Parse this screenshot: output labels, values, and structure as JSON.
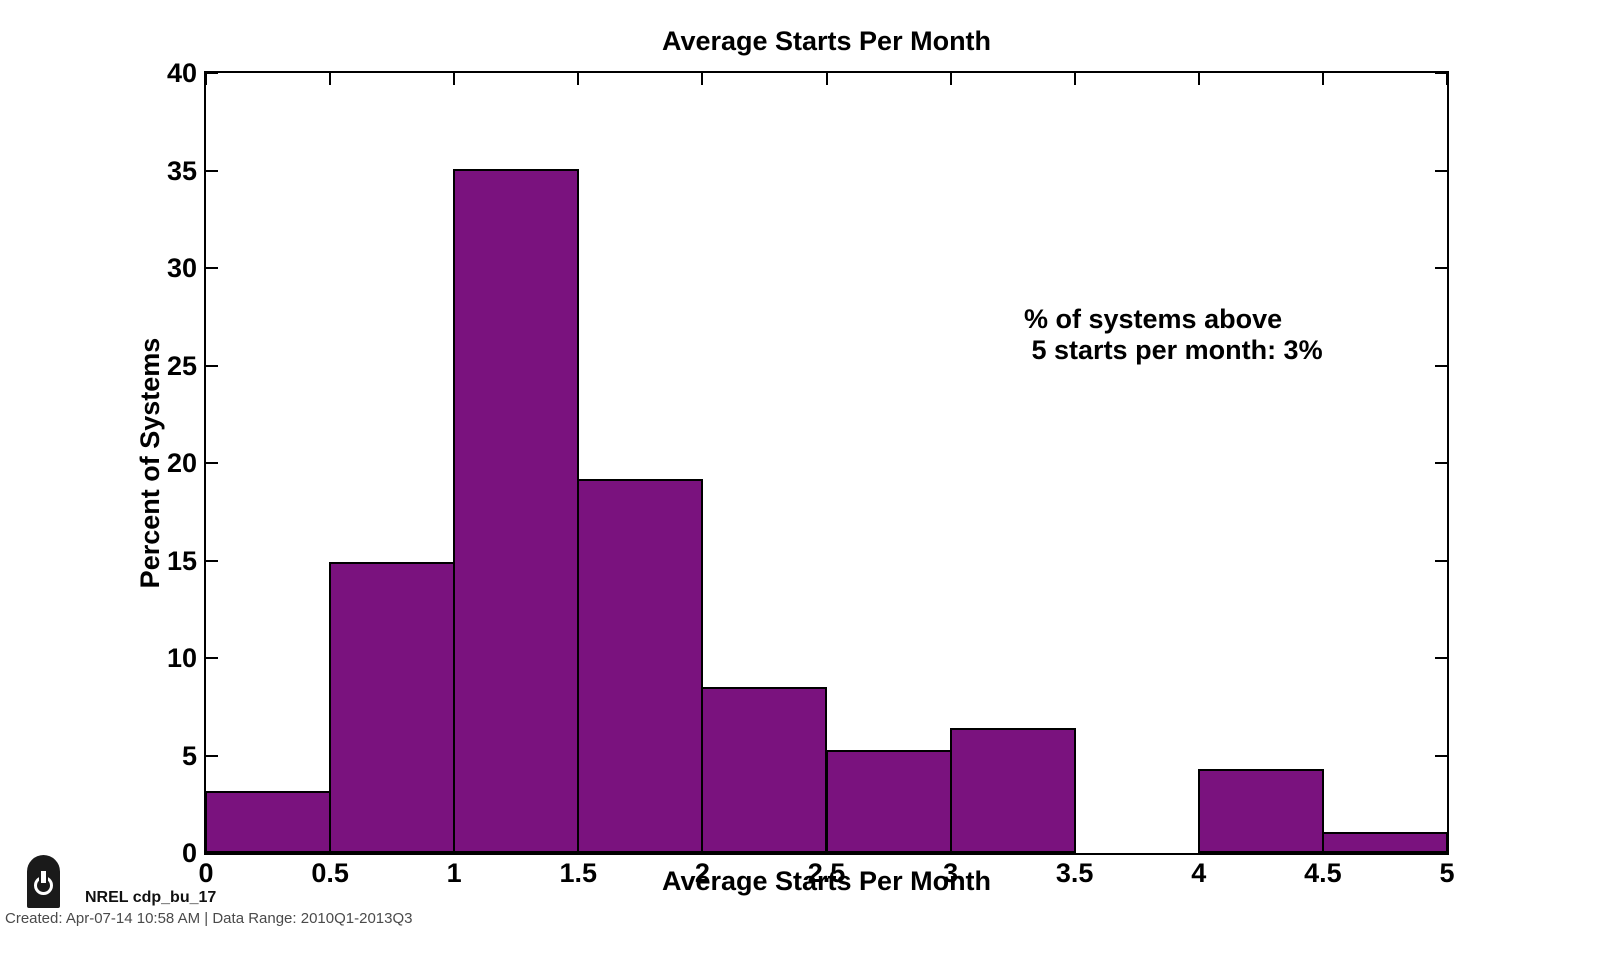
{
  "chart_data": {
    "type": "bar",
    "title": "Average Starts Per Month",
    "xlabel": "Average Starts Per Month",
    "ylabel": "Percent of Systems",
    "xlim": [
      0,
      5
    ],
    "ylim": [
      0,
      40
    ],
    "xticks": [
      0,
      0.5,
      1,
      1.5,
      2,
      2.5,
      3,
      3.5,
      4,
      4.5,
      5
    ],
    "xtick_labels": [
      "0",
      "0.5",
      "1",
      "1.5",
      "2",
      "2.5",
      "3",
      "3.5",
      "4",
      "4.5",
      "5"
    ],
    "yticks": [
      0,
      5,
      10,
      15,
      20,
      25,
      30,
      35,
      40
    ],
    "ytick_labels": [
      "0",
      "5",
      "10",
      "15",
      "20",
      "25",
      "30",
      "35",
      "40"
    ],
    "bin_width": 0.5,
    "bin_edges": [
      0,
      0.5,
      1,
      1.5,
      2,
      2.5,
      3,
      3.5,
      4,
      4.5
    ],
    "values": [
      3.2,
      14.9,
      35.1,
      19.2,
      8.5,
      5.3,
      6.4,
      0,
      4.3,
      1.1
    ],
    "bar_color": "#7A127E",
    "bar_edge_color": "#000000",
    "grid": false,
    "legend": null,
    "annotation": "% of systems above\n 5 starts per month: 3%"
  },
  "footer": {
    "power_icon": "power-icon",
    "source_label": "NREL cdp_bu_17",
    "created_line": "Created: Apr-07-14 10:58 AM | Data Range: 2010Q1-2013Q3"
  }
}
